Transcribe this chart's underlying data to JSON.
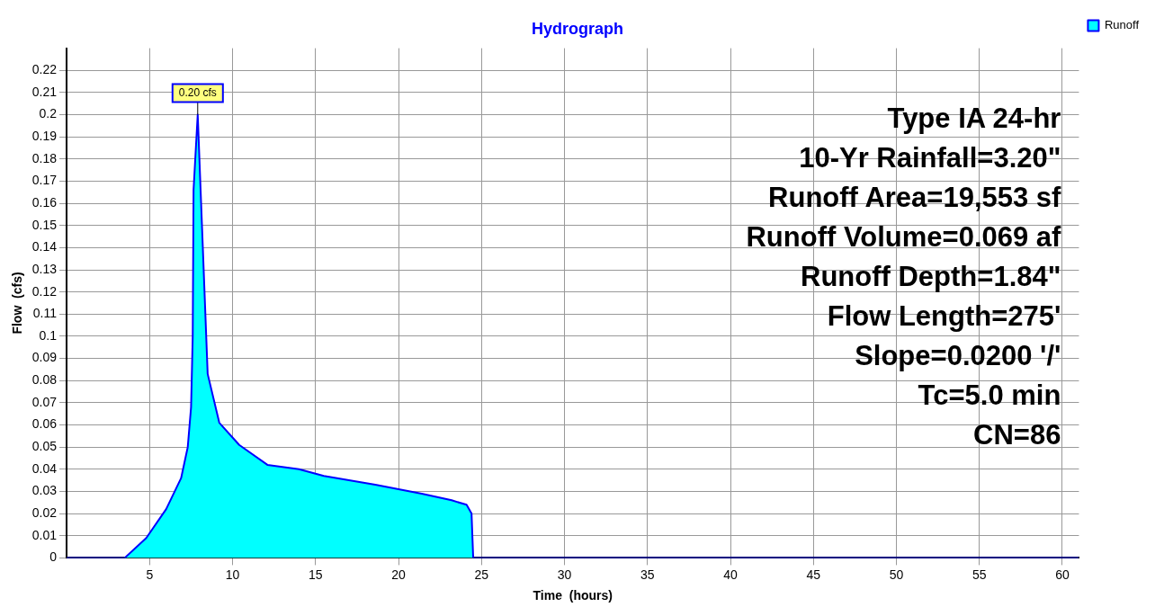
{
  "chart_data": {
    "type": "area",
    "title": "Hydrograph",
    "xlabel": "Time  (hours)",
    "ylabel": "Flow  (cfs)",
    "xlim": [
      0,
      61
    ],
    "xticks": [
      5,
      10,
      15,
      20,
      25,
      30,
      35,
      40,
      45,
      50,
      55,
      60
    ],
    "ylim": [
      0,
      0.23
    ],
    "yticks": [
      0,
      0.01,
      0.02,
      0.03,
      0.04,
      0.05,
      0.06,
      0.07,
      0.08,
      0.09,
      0.1,
      0.11,
      0.12,
      0.13,
      0.14,
      0.15,
      0.16,
      0.17,
      0.18,
      0.19,
      0.2,
      0.21,
      0.22
    ],
    "grid": true,
    "legend": "top right",
    "line_style": "solid",
    "marker": "none",
    "series": [
      {
        "name": "Runoff",
        "color": "#00ffff",
        "x": [
          0,
          3.5,
          4.8,
          6.0,
          6.9,
          7.3,
          7.5,
          7.6,
          7.65,
          7.9,
          8.5,
          9.2,
          10.4,
          12.1,
          14.0,
          15.5,
          18.6,
          21.4,
          23.2,
          24.1,
          24.4,
          24.5,
          61
        ],
        "values": [
          0,
          0,
          0.009,
          0.022,
          0.036,
          0.05,
          0.068,
          0.1,
          0.166,
          0.2,
          0.083,
          0.061,
          0.051,
          0.042,
          0.04,
          0.037,
          0.033,
          0.029,
          0.026,
          0.024,
          0.02,
          0,
          0
        ]
      }
    ],
    "annotations": [
      {
        "text": "0.20 cfs",
        "x": 7.9,
        "y": 0.2
      },
      "Type IA 24-hr",
      "10-Yr Rainfall=3.20\"",
      "Runoff Area=19,553 sf",
      "Runoff Volume=0.069 af",
      "Runoff Depth=1.84\"",
      "Flow Length=275'",
      "Slope=0.0200 '/'",
      "Tc=5.0 min",
      "CN=86"
    ]
  }
}
